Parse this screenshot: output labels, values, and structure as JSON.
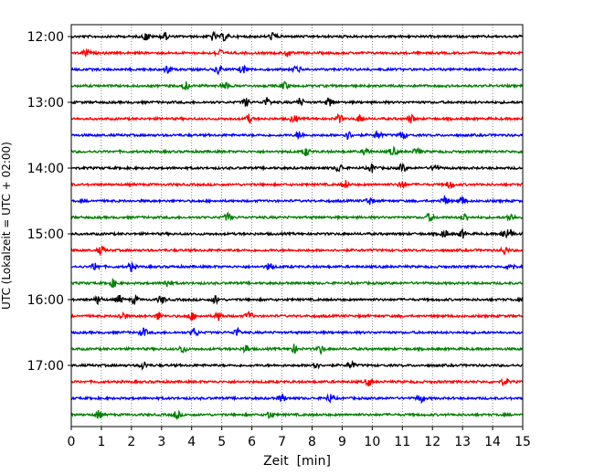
{
  "chart_data": {
    "type": "line",
    "title": "",
    "xlabel": "Zeit  [min]",
    "ylabel": "UTC (Lokalzeit = UTC + 02:00)",
    "xlim": [
      0,
      15
    ],
    "x_ticks": [
      "0",
      "1",
      "2",
      "3",
      "4",
      "5",
      "6",
      "7",
      "8",
      "9",
      "10",
      "11",
      "12",
      "13",
      "14",
      "15"
    ],
    "y_ticks": [
      "12:00",
      "13:00",
      "14:00",
      "15:00",
      "16:00",
      "17:00"
    ],
    "grid": "vertical dotted",
    "colors": [
      "#000000",
      "#ff0000",
      "#0000ff",
      "#008000"
    ],
    "trace_interval_min": 15,
    "traces": [
      {
        "start": "12:00",
        "color": "#000000",
        "events_min": [
          2.5,
          3.1,
          4.7,
          5.1,
          6.7
        ]
      },
      {
        "start": "12:15",
        "color": "#ff0000",
        "events_min": [
          0.5,
          4.9,
          7.2
        ]
      },
      {
        "start": "12:30",
        "color": "#0000ff",
        "events_min": [
          3.2,
          4.9,
          5.7,
          7.5
        ]
      },
      {
        "start": "12:45",
        "color": "#008000",
        "events_min": [
          3.8,
          5.1,
          7.1
        ]
      },
      {
        "start": "13:00",
        "color": "#000000",
        "events_min": [
          5.8,
          6.5,
          7.6,
          8.6
        ]
      },
      {
        "start": "13:15",
        "color": "#ff0000",
        "events_min": [
          5.9,
          7.4,
          8.9,
          9.6,
          11.3
        ]
      },
      {
        "start": "13:30",
        "color": "#0000ff",
        "events_min": [
          7.6,
          9.2,
          10.2,
          11.0
        ]
      },
      {
        "start": "13:45",
        "color": "#008000",
        "events_min": [
          7.8,
          9.8,
          10.7,
          11.5
        ]
      },
      {
        "start": "14:00",
        "color": "#000000",
        "events_min": [
          8.9,
          10.0,
          11.0,
          12.1
        ]
      },
      {
        "start": "14:15",
        "color": "#ff0000",
        "events_min": [
          9.1,
          11.0,
          12.6
        ]
      },
      {
        "start": "14:30",
        "color": "#0000ff",
        "events_min": [
          9.9,
          12.4,
          13.0
        ]
      },
      {
        "start": "14:45",
        "color": "#008000",
        "events_min": [
          5.2,
          11.9,
          13.1,
          14.6
        ]
      },
      {
        "start": "15:00",
        "color": "#000000",
        "events_min": [
          12.4,
          13.0,
          14.4,
          14.6
        ]
      },
      {
        "start": "15:15",
        "color": "#ff0000",
        "events_min": [
          1.0,
          14.4
        ]
      },
      {
        "start": "15:30",
        "color": "#0000ff",
        "events_min": [
          0.8,
          2.0,
          6.6,
          14.6
        ]
      },
      {
        "start": "15:45",
        "color": "#008000",
        "events_min": [
          1.4,
          3.2
        ]
      },
      {
        "start": "16:00",
        "color": "#000000",
        "events_min": [
          0.9,
          1.6,
          2.1,
          3.0,
          4.8
        ]
      },
      {
        "start": "16:15",
        "color": "#ff0000",
        "events_min": [
          1.7,
          2.9,
          4.0,
          4.9,
          5.9
        ]
      },
      {
        "start": "16:30",
        "color": "#0000ff",
        "events_min": [
          2.4,
          4.1,
          5.5
        ]
      },
      {
        "start": "16:45",
        "color": "#008000",
        "events_min": [
          3.7,
          5.8,
          7.4,
          8.3
        ]
      },
      {
        "start": "17:00",
        "color": "#000000",
        "events_min": [
          2.4,
          8.1,
          9.3
        ]
      },
      {
        "start": "17:15",
        "color": "#ff0000",
        "events_min": [
          9.9,
          14.4
        ]
      },
      {
        "start": "17:30",
        "color": "#0000ff",
        "events_min": [
          7.0,
          8.6,
          11.6
        ]
      },
      {
        "start": "17:45",
        "color": "#008000",
        "events_min": [
          0.9,
          3.5,
          6.6
        ]
      }
    ]
  }
}
